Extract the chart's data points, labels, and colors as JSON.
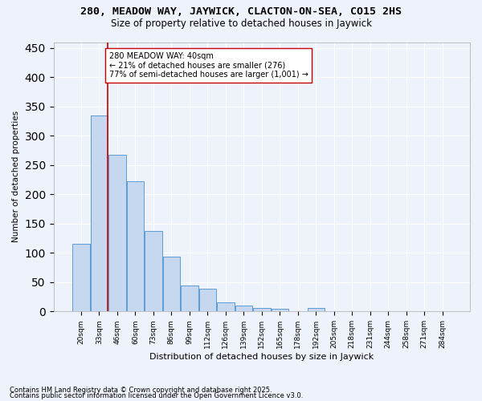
{
  "title1": "280, MEADOW WAY, JAYWICK, CLACTON-ON-SEA, CO15 2HS",
  "title2": "Size of property relative to detached houses in Jaywick",
  "xlabel": "Distribution of detached houses by size in Jaywick",
  "ylabel": "Number of detached properties",
  "categories": [
    "20sqm",
    "33sqm",
    "46sqm",
    "60sqm",
    "73sqm",
    "86sqm",
    "99sqm",
    "112sqm",
    "126sqm",
    "139sqm",
    "152sqm",
    "165sqm",
    "178sqm",
    "192sqm",
    "205sqm",
    "218sqm",
    "231sqm",
    "244sqm",
    "258sqm",
    "271sqm",
    "284sqm"
  ],
  "values": [
    115,
    335,
    268,
    222,
    138,
    93,
    44,
    39,
    16,
    10,
    6,
    5,
    0,
    6,
    0,
    0,
    0,
    0,
    0,
    0,
    0
  ],
  "bar_color": "#c5d8f0",
  "bar_edge_color": "#5b9bd5",
  "vline_x_pos": 1.48,
  "vline_color": "#cc0000",
  "annotation_text": "280 MEADOW WAY: 40sqm\n← 21% of detached houses are smaller (276)\n77% of semi-detached houses are larger (1,001) →",
  "annotation_box_color": "#ffffff",
  "annotation_box_edge": "#cc0000",
  "ylim": [
    0,
    460
  ],
  "yticks": [
    0,
    50,
    100,
    150,
    200,
    250,
    300,
    350,
    400,
    450
  ],
  "footer1": "Contains HM Land Registry data © Crown copyright and database right 2025.",
  "footer2": "Contains public sector information licensed under the Open Government Licence v3.0.",
  "bg_color": "#eef2fa",
  "plot_bg_color": "#eef2fa",
  "title1_fontsize": 9.5,
  "title2_fontsize": 8.5,
  "xlabel_fontsize": 8,
  "ylabel_fontsize": 7.5,
  "tick_fontsize": 6.5,
  "annotation_fontsize": 7,
  "footer_fontsize": 6
}
